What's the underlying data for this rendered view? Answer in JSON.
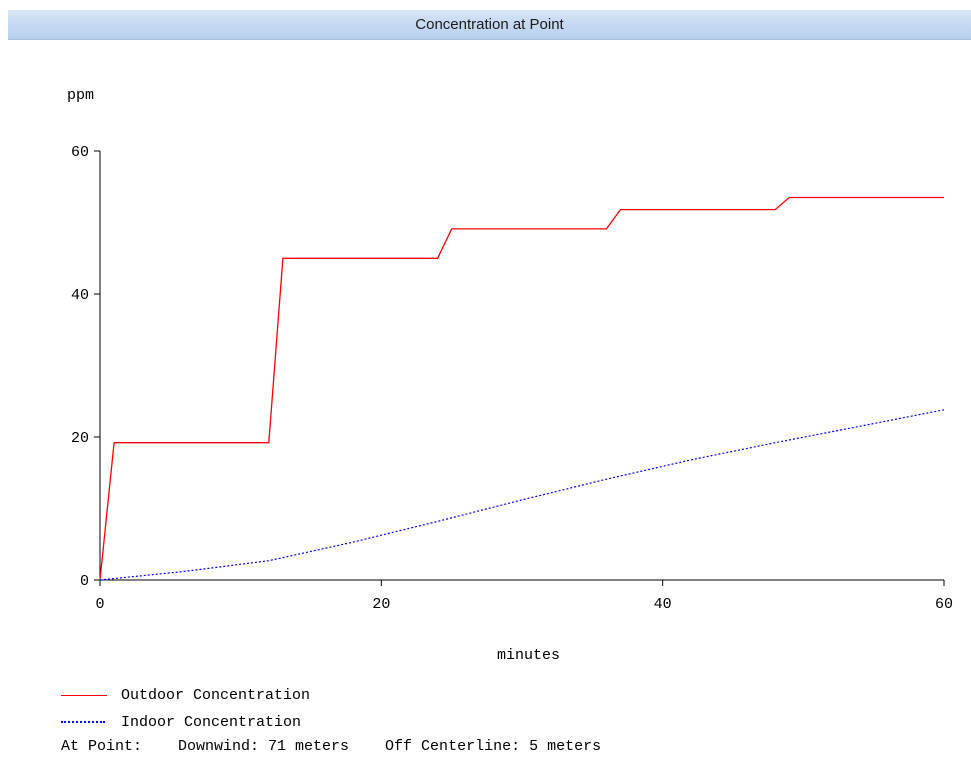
{
  "window": {
    "title": "Concentration at Point"
  },
  "chart_data": {
    "type": "line",
    "title": "",
    "xlabel": "minutes",
    "ylabel": "ppm",
    "xlim": [
      0,
      60
    ],
    "ylim": [
      0,
      60
    ],
    "xticks": [
      0,
      20,
      40,
      60
    ],
    "yticks": [
      0,
      20,
      40,
      60
    ],
    "grid": false,
    "legend_position": "bottom-left",
    "series": [
      {
        "name": "Outdoor Concentration",
        "color": "#ff0000",
        "style": "solid",
        "x": [
          0,
          1,
          12,
          13,
          24,
          25,
          36,
          37,
          48,
          49,
          60
        ],
        "y": [
          0,
          19.2,
          19.2,
          45,
          45,
          49.1,
          49.1,
          51.8,
          51.8,
          53.5,
          53.5
        ]
      },
      {
        "name": "Indoor Concentration",
        "color": "#0000ff",
        "style": "dotted",
        "x": [
          0,
          6,
          12,
          18,
          24,
          30,
          36,
          42,
          48,
          54,
          60
        ],
        "y": [
          0,
          1.2,
          2.7,
          5.3,
          8.2,
          11.2,
          14.1,
          16.8,
          19.2,
          21.5,
          23.8
        ]
      }
    ]
  },
  "legend": [
    {
      "label": "Outdoor Concentration"
    },
    {
      "label": "Indoor Concentration"
    }
  ],
  "footer": {
    "text": "At Point:    Downwind: 71 meters    Off Centerline: 5 meters"
  }
}
